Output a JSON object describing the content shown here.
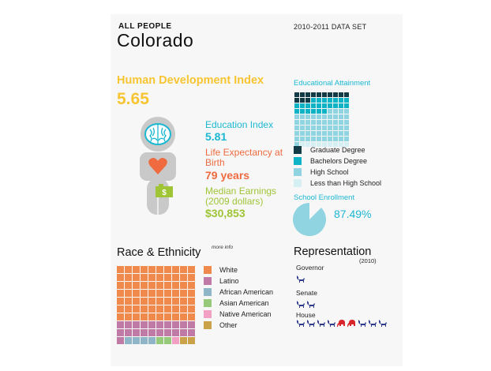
{
  "header": {
    "kicker": "ALL PEOPLE",
    "title": "Colorado",
    "dataset": "2010-2011 DATA SET"
  },
  "hdi": {
    "label": "Human Development Index",
    "value": "5.65"
  },
  "indices": {
    "education_label": "Education Index",
    "education_value": "5.81",
    "life_label": "Life Expectancy at Birth",
    "life_value": "79 years",
    "earnings_label": "Median Earnings (2009 dollars)",
    "earnings_value": "$30,853"
  },
  "figure_icons": [
    "brain-icon",
    "heart-icon",
    "money-bag-icon"
  ],
  "colors": {
    "hdi": "#f7c531",
    "education": "#1cb8d2",
    "life": "#ef6b3f",
    "earnings": "#9fc436",
    "democrat": "#2e3a8c",
    "republican": "#d9262b"
  },
  "educational_attainment": {
    "title": "Educational Attainment",
    "legend": [
      {
        "label": "Graduate Degree",
        "color": "#123b46"
      },
      {
        "label": "Bachelors Degree",
        "color": "#0fb3c6"
      },
      {
        "label": "High School",
        "color": "#8fd4e0"
      },
      {
        "label": "Less than High School",
        "color": "#d5eff3"
      }
    ],
    "squares": [
      13,
      23,
      55,
      9
    ]
  },
  "school_enrollment": {
    "title": "School Enrollment",
    "value": "87.49%",
    "fraction": 0.8749,
    "color": "#8fd4e0"
  },
  "race_ethnicity": {
    "title": "Race & Ethnicity",
    "more_info": "more info",
    "legend": [
      {
        "label": "White",
        "color": "#ef8a4c"
      },
      {
        "label": "Latino",
        "color": "#c07aa6"
      },
      {
        "label": "African American",
        "color": "#8fb5c9"
      },
      {
        "label": "Asian American",
        "color": "#97c97a"
      },
      {
        "label": "Native American",
        "color": "#f1a0c3"
      },
      {
        "label": "Other",
        "color": "#c9a24a"
      }
    ],
    "squares": [
      70,
      21,
      4,
      2,
      1,
      2
    ]
  },
  "representation": {
    "title": "Representation",
    "year": "(2010)",
    "groups": [
      {
        "label": "Governor",
        "members": [
          "democrat"
        ]
      },
      {
        "label": "Senate",
        "members": [
          "democrat",
          "democrat"
        ]
      },
      {
        "label": "House",
        "members": [
          "democrat",
          "democrat",
          "democrat",
          "democrat",
          "republican",
          "republican",
          "democrat",
          "democrat",
          "democrat"
        ]
      }
    ]
  }
}
